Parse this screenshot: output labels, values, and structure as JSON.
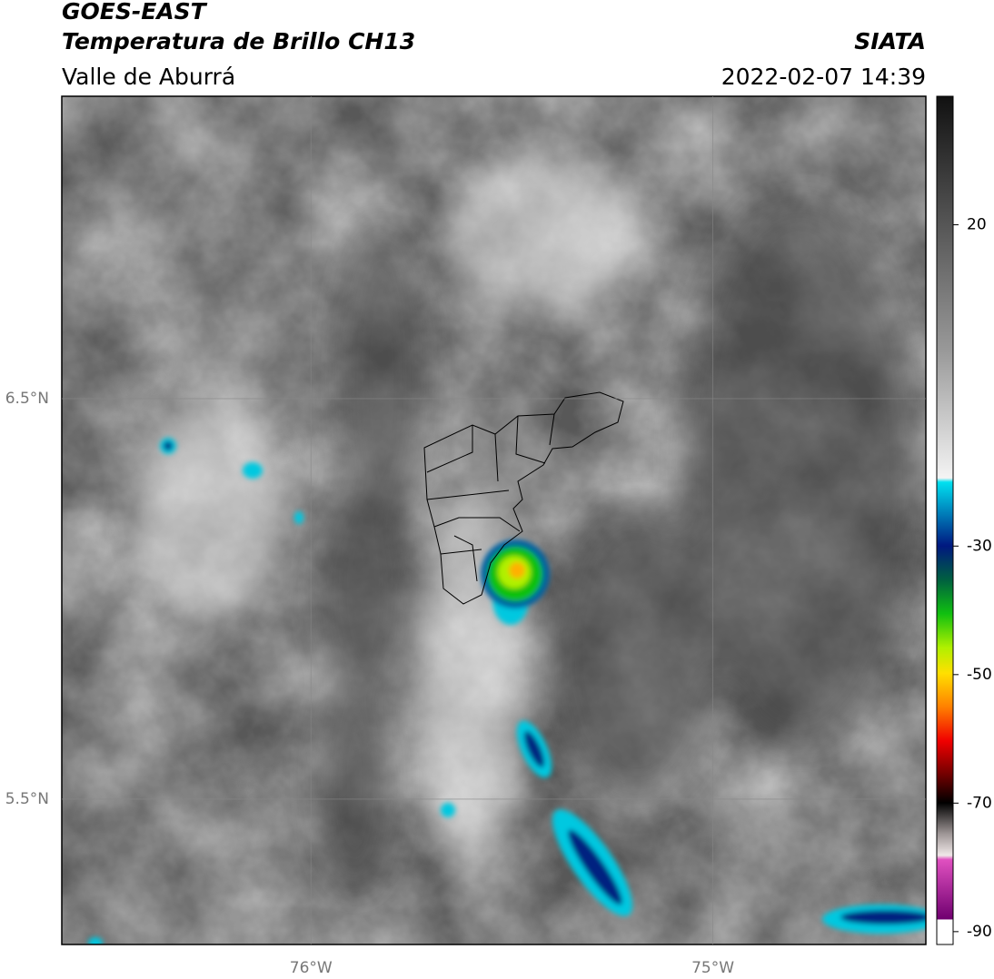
{
  "header": {
    "title": "GOES-EAST",
    "subtitle": "Temperatura de Brillo CH13",
    "region": "Valle de Aburrá",
    "source": "SIATA",
    "timestamp": "2022-02-07 14:39"
  },
  "map": {
    "xlim": [
      -76.62,
      -74.47
    ],
    "ylim": [
      5.137,
      7.255
    ],
    "xticks": [
      {
        "value": -76,
        "label": "76°W"
      },
      {
        "value": -75,
        "label": "75°W"
      }
    ],
    "yticks": [
      {
        "value": 6.5,
        "label": "6.5°N"
      },
      {
        "value": 5.5,
        "label": "5.5°N"
      }
    ],
    "grid": true
  },
  "colorbar": {
    "lim": [
      -92,
      40
    ],
    "ticks": [
      20,
      -30,
      -50,
      -70,
      -90
    ]
  }
}
